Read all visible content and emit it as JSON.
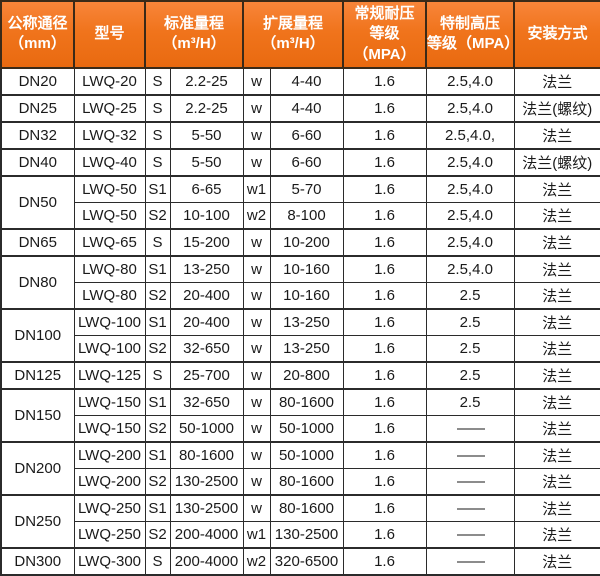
{
  "colors": {
    "header_bg": "#f0741c",
    "header_text": "#ffffff",
    "grid_border": "#2b2b2b",
    "body_text": "#1a1a1a"
  },
  "table": {
    "headers": [
      {
        "line1": "公称通径",
        "line2": "（mm）",
        "colspan": 1
      },
      {
        "line1": "型号",
        "colspan": 1
      },
      {
        "line1": "标准量程",
        "line2": "（m³/H）",
        "colspan": 2
      },
      {
        "line1": "扩展量程",
        "line2": "（m³/H）",
        "colspan": 2
      },
      {
        "line1": "常规耐压",
        "line2": "等级（MPA）",
        "colspan": 1
      },
      {
        "line1": "特制高压",
        "line2": "等级（MPA）",
        "colspan": 1
      },
      {
        "line1": "安装方式",
        "colspan": 1
      }
    ],
    "rows": [
      {
        "dn": "DN20",
        "dn_rowspan": 1,
        "group_start": true,
        "model": "LWQ-20",
        "std_grade": "S",
        "std_range": "2.2-25",
        "ext_grade": "w",
        "ext_range": "4-40",
        "pressure_std": "1.6",
        "pressure_hp": "2.5,4.0",
        "install": "法兰"
      },
      {
        "dn": "DN25",
        "dn_rowspan": 1,
        "group_start": true,
        "model": "LWQ-25",
        "std_grade": "S",
        "std_range": "2.2-25",
        "ext_grade": "w",
        "ext_range": "4-40",
        "pressure_std": "1.6",
        "pressure_hp": "2.5,4.0",
        "install": "法兰(螺纹)"
      },
      {
        "dn": "DN32",
        "dn_rowspan": 1,
        "group_start": true,
        "model": "LWQ-32",
        "std_grade": "S",
        "std_range": "5-50",
        "ext_grade": "w",
        "ext_range": "6-60",
        "pressure_std": "1.6",
        "pressure_hp": "2.5,4.0,",
        "install": "法兰"
      },
      {
        "dn": "DN40",
        "dn_rowspan": 1,
        "group_start": true,
        "model": "LWQ-40",
        "std_grade": "S",
        "std_range": "5-50",
        "ext_grade": "w",
        "ext_range": "6-60",
        "pressure_std": "1.6",
        "pressure_hp": "2.5,4.0",
        "install": "法兰(螺纹)"
      },
      {
        "dn": "DN50",
        "dn_rowspan": 2,
        "group_start": true,
        "model": "LWQ-50",
        "std_grade": "S1",
        "std_range": "6-65",
        "ext_grade": "w1",
        "ext_range": "5-70",
        "pressure_std": "1.6",
        "pressure_hp": "2.5,4.0",
        "install": "法兰"
      },
      {
        "dn": null,
        "group_start": false,
        "model": "LWQ-50",
        "std_grade": "S2",
        "std_range": "10-100",
        "ext_grade": "w2",
        "ext_range": "8-100",
        "pressure_std": "1.6",
        "pressure_hp": "2.5,4.0",
        "install": "法兰"
      },
      {
        "dn": "DN65",
        "dn_rowspan": 1,
        "group_start": true,
        "model": "LWQ-65",
        "std_grade": "S",
        "std_range": "15-200",
        "ext_grade": "w",
        "ext_range": "10-200",
        "pressure_std": "1.6",
        "pressure_hp": "2.5,4.0",
        "install": "法兰"
      },
      {
        "dn": "DN80",
        "dn_rowspan": 2,
        "group_start": true,
        "model": "LWQ-80",
        "std_grade": "S1",
        "std_range": "13-250",
        "ext_grade": "w",
        "ext_range": "10-160",
        "pressure_std": "1.6",
        "pressure_hp": "2.5,4.0",
        "install": "法兰"
      },
      {
        "dn": null,
        "group_start": false,
        "model": "LWQ-80",
        "std_grade": "S2",
        "std_range": "20-400",
        "ext_grade": "w",
        "ext_range": "10-160",
        "pressure_std": "1.6",
        "pressure_hp": "2.5",
        "install": "法兰"
      },
      {
        "dn": "DN100",
        "dn_rowspan": 2,
        "group_start": true,
        "model": "LWQ-100",
        "std_grade": "S1",
        "std_range": "20-400",
        "ext_grade": "w",
        "ext_range": "13-250",
        "pressure_std": "1.6",
        "pressure_hp": "2.5",
        "install": "法兰"
      },
      {
        "dn": null,
        "group_start": false,
        "model": "LWQ-100",
        "std_grade": "S2",
        "std_range": "32-650",
        "ext_grade": "w",
        "ext_range": "13-250",
        "pressure_std": "1.6",
        "pressure_hp": "2.5",
        "install": "法兰"
      },
      {
        "dn": "DN125",
        "dn_rowspan": 1,
        "group_start": true,
        "model": "LWQ-125",
        "std_grade": "S",
        "std_range": "25-700",
        "ext_grade": "w",
        "ext_range": "20-800",
        "pressure_std": "1.6",
        "pressure_hp": "2.5",
        "install": "法兰"
      },
      {
        "dn": "DN150",
        "dn_rowspan": 2,
        "group_start": true,
        "model": "LWQ-150",
        "std_grade": "S1",
        "std_range": "32-650",
        "ext_grade": "w",
        "ext_range": "80-1600",
        "pressure_std": "1.6",
        "pressure_hp": "2.5",
        "install": "法兰"
      },
      {
        "dn": null,
        "group_start": false,
        "model": "LWQ-150",
        "std_grade": "S2",
        "std_range": "50-1000",
        "ext_grade": "w",
        "ext_range": "50-1000",
        "pressure_std": "1.6",
        "pressure_hp": "——",
        "install": "法兰"
      },
      {
        "dn": "DN200",
        "dn_rowspan": 2,
        "group_start": true,
        "model": "LWQ-200",
        "std_grade": "S1",
        "std_range": "80-1600",
        "ext_grade": "w",
        "ext_range": "50-1000",
        "pressure_std": "1.6",
        "pressure_hp": "——",
        "install": "法兰"
      },
      {
        "dn": null,
        "group_start": false,
        "model": "LWQ-200",
        "std_grade": "S2",
        "std_range": "130-2500",
        "ext_grade": "w",
        "ext_range": "80-1600",
        "pressure_std": "1.6",
        "pressure_hp": "——",
        "install": "法兰"
      },
      {
        "dn": "DN250",
        "dn_rowspan": 2,
        "group_start": true,
        "model": "LWQ-250",
        "std_grade": "S1",
        "std_range": "130-2500",
        "ext_grade": "w",
        "ext_range": "80-1600",
        "pressure_std": "1.6",
        "pressure_hp": "——",
        "install": "法兰"
      },
      {
        "dn": null,
        "group_start": false,
        "model": "LWQ-250",
        "std_grade": "S2",
        "std_range": "200-4000",
        "ext_grade": "w1",
        "ext_range": "130-2500",
        "pressure_std": "1.6",
        "pressure_hp": "——",
        "install": "法兰"
      },
      {
        "dn": "DN300",
        "dn_rowspan": 1,
        "group_start": true,
        "model": "LWQ-300",
        "std_grade": "S",
        "std_range": "200-4000",
        "ext_grade": "w2",
        "ext_range": "320-6500",
        "pressure_std": "1.6",
        "pressure_hp": "——",
        "install": "法兰"
      }
    ]
  }
}
